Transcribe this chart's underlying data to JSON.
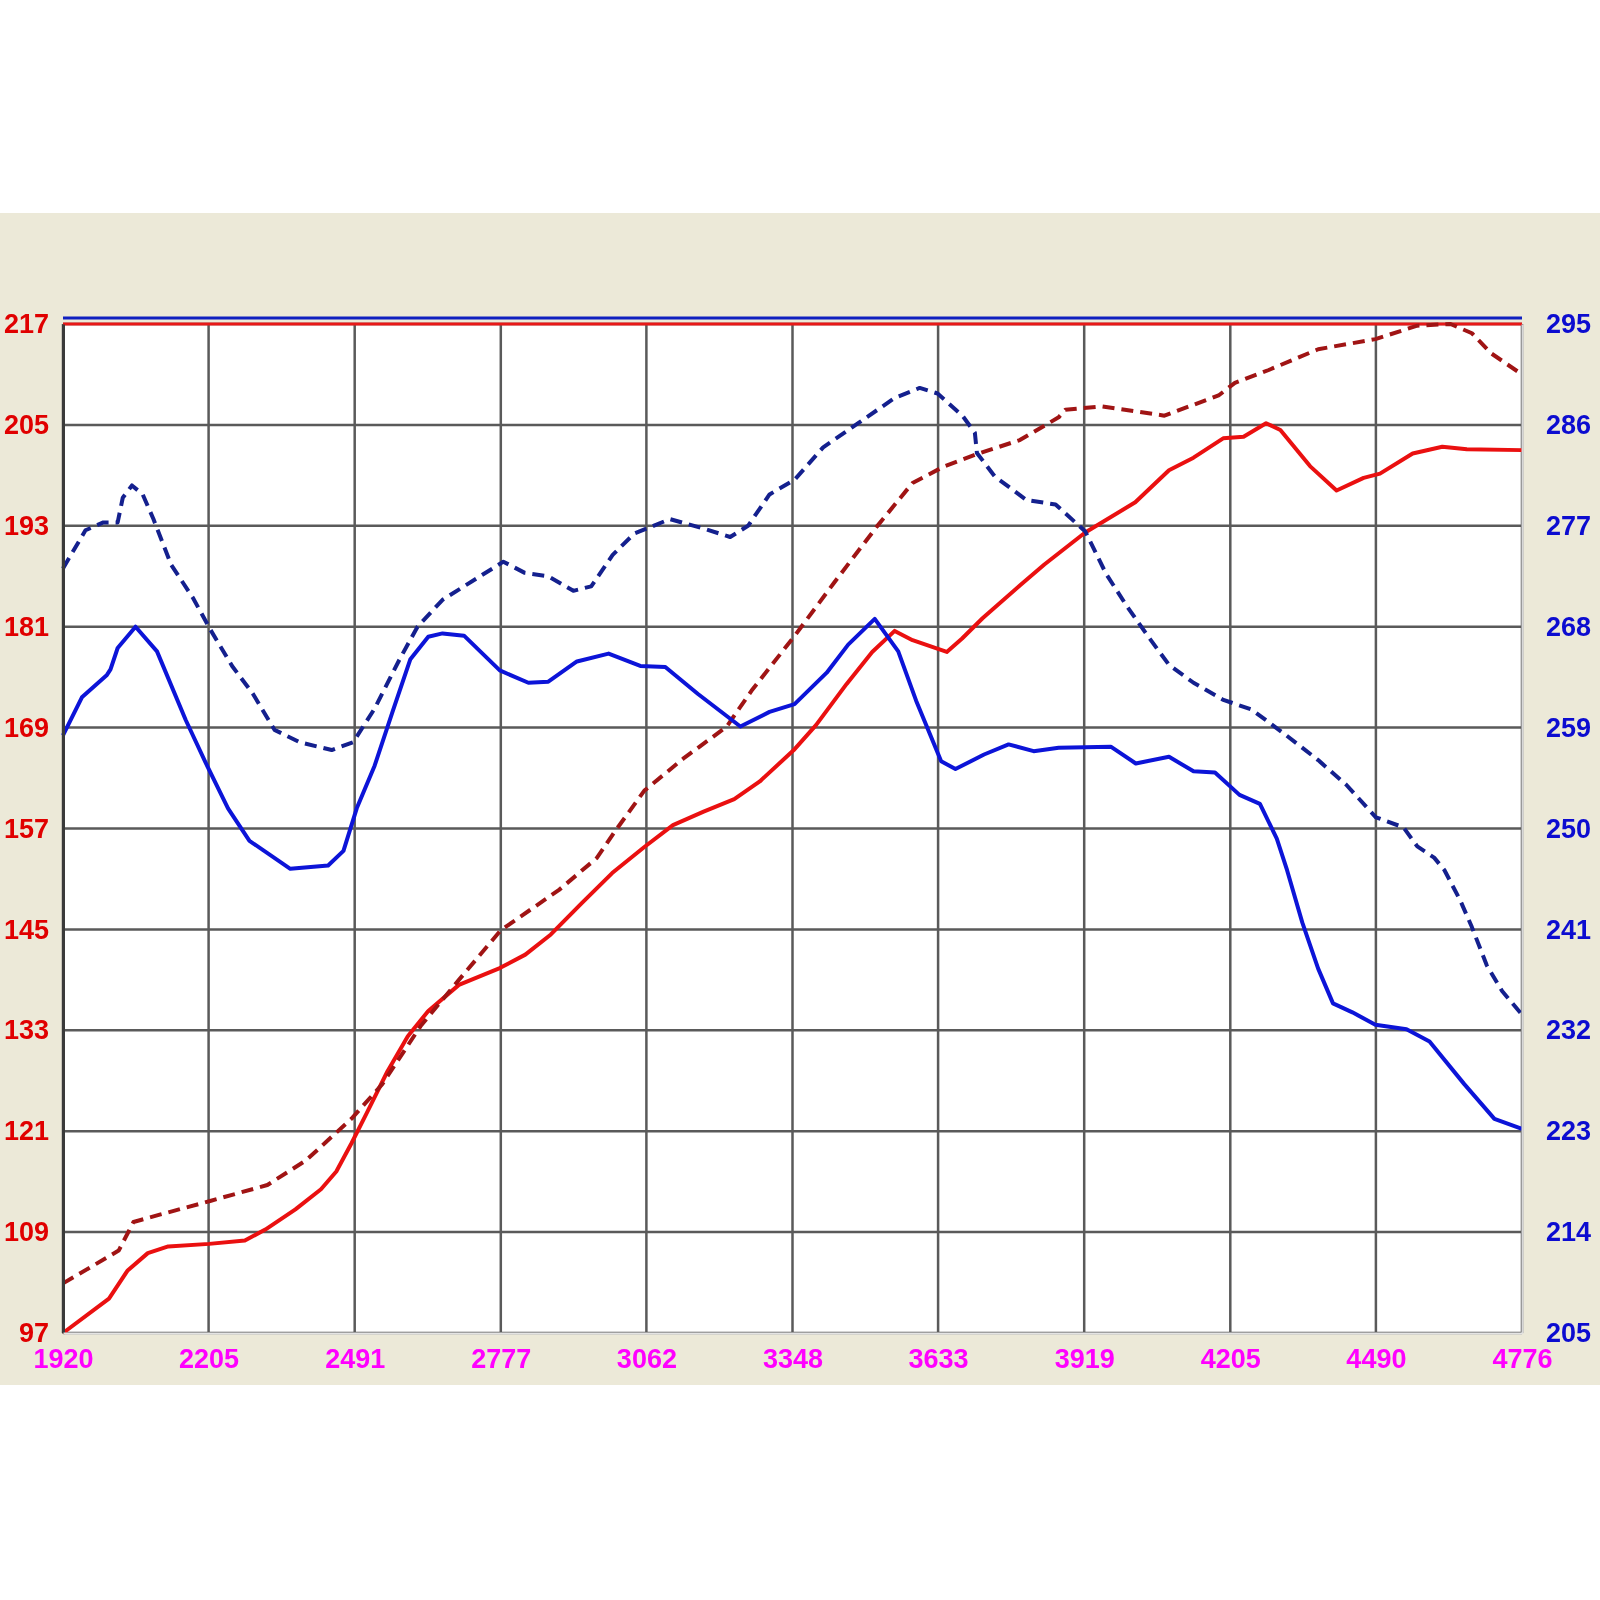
{
  "chart_data": {
    "type": "line",
    "xlim": [
      1920,
      4776
    ],
    "xticks": [
      1920,
      2205,
      2491,
      2777,
      3062,
      3348,
      3633,
      3919,
      4205,
      4490,
      4776
    ],
    "ylim": [
      97,
      217
    ],
    "yticks": [
      97,
      109,
      121,
      133,
      145,
      157,
      169,
      181,
      193,
      205,
      217
    ],
    "y2lim": [
      205,
      295
    ],
    "y2ticks": [
      205,
      214,
      223,
      232,
      241,
      250,
      259,
      268,
      277,
      286,
      295
    ],
    "grid": true,
    "series": [
      {
        "color": "#ea1010",
        "line_style": "solid",
        "x": [
          1920,
          2010,
          2046,
          2086,
          2126,
          2206,
          2276,
          2316,
          2375,
          2425,
          2455,
          2485,
          2515,
          2555,
          2595,
          2635,
          2695,
          2775,
          2825,
          2875,
          2935,
          2995,
          3058,
          3114,
          3174,
          3234,
          3284,
          3350,
          3394,
          3454,
          3504,
          3548,
          3583,
          3650,
          3680,
          3720,
          3793,
          3841,
          3921,
          4019,
          4085,
          4133,
          4191,
          4231,
          4275,
          4303,
          4361,
          4413,
          4466,
          4498,
          4562,
          4620,
          4668,
          4776
        ],
        "values": [
          97.0,
          101.1,
          104.4,
          106.5,
          107.3,
          107.6,
          108.0,
          109.3,
          111.7,
          114.1,
          116.2,
          119.6,
          123.2,
          128.1,
          132.3,
          135.3,
          138.4,
          140.4,
          142.0,
          144.4,
          148.1,
          151.7,
          154.8,
          157.4,
          159.0,
          160.5,
          162.6,
          166.3,
          169.3,
          174.2,
          178.0,
          180.5,
          179.4,
          178.0,
          179.6,
          182.0,
          185.9,
          188.4,
          192.2,
          195.8,
          199.6,
          201.1,
          203.4,
          203.6,
          205.2,
          204.4,
          200.1,
          197.2,
          198.7,
          199.2,
          201.6,
          202.4,
          202.1,
          202.0
        ]
      },
      {
        "color": "#a01414",
        "line_style": "dashed",
        "x": [
          1920,
          2029,
          2058,
          2111,
          2208,
          2320,
          2395,
          2485,
          2545,
          2620,
          2695,
          2777,
          2891,
          2965,
          3001,
          3058,
          3134,
          3219,
          3268,
          3352,
          3429,
          3513,
          3583,
          3646,
          3708,
          3793,
          3869,
          3882,
          3955,
          4076,
          4182,
          4214,
          4279,
          4377,
          4489,
          4571,
          4636,
          4678,
          4716,
          4776
        ],
        "values": [
          102.9,
          106.8,
          110.2,
          111.1,
          112.7,
          114.6,
          117.5,
          122.5,
          126.6,
          133.5,
          139.0,
          144.9,
          149.7,
          153.5,
          156.7,
          161.5,
          165.3,
          169.1,
          173.4,
          179.9,
          186.2,
          192.9,
          198.1,
          200.1,
          201.5,
          203.2,
          205.9,
          206.8,
          207.2,
          206.1,
          208.5,
          210.0,
          211.5,
          214.0,
          215.2,
          216.8,
          217.0,
          215.9,
          213.5,
          211.0
        ]
      },
      {
        "color": "#0c14d8",
        "line_style": "solid",
        "axis": "y2",
        "x": [
          1920,
          1957,
          2006,
          2013,
          2027,
          2062,
          2104,
          2160,
          2202,
          2243,
          2285,
          2365,
          2439,
          2469,
          2495,
          2530,
          2565,
          2600,
          2635,
          2663,
          2705,
          2775,
          2831,
          2870,
          2926,
          2988,
          3050,
          3099,
          3163,
          3246,
          3303,
          3352,
          3415,
          3457,
          3509,
          3555,
          3590,
          3639,
          3667,
          3723,
          3771,
          3820,
          3869,
          3971,
          4020,
          4085,
          4133,
          4175,
          4223,
          4263,
          4296,
          4316,
          4346,
          4377,
          4406,
          4444,
          4489,
          4550,
          4595,
          4663,
          4722,
          4776
        ],
        "values": [
          258.3,
          261.7,
          263.7,
          264.2,
          266.1,
          268.0,
          265.8,
          259.7,
          255.6,
          251.8,
          248.9,
          246.4,
          246.7,
          248.0,
          251.8,
          255.6,
          260.4,
          265.1,
          267.1,
          267.4,
          267.2,
          264.1,
          263.0,
          263.1,
          264.9,
          265.6,
          264.5,
          264.4,
          262.0,
          259.1,
          260.4,
          261.1,
          263.9,
          266.4,
          268.7,
          265.8,
          261.4,
          256.0,
          255.3,
          256.6,
          257.5,
          256.9,
          257.2,
          257.3,
          255.8,
          256.4,
          255.1,
          255.0,
          253.0,
          252.2,
          249.1,
          246.3,
          241.6,
          237.5,
          234.4,
          233.6,
          232.5,
          232.1,
          231.0,
          227.2,
          224.1,
          223.2
        ]
      },
      {
        "color": "#14208e",
        "line_style": "dashed",
        "axis": "y2",
        "x": [
          1920,
          1964,
          1999,
          2027,
          2037,
          2055,
          2076,
          2097,
          2132,
          2174,
          2209,
          2251,
          2292,
          2334,
          2383,
          2446,
          2488,
          2530,
          2579,
          2614,
          2663,
          2705,
          2782,
          2824,
          2870,
          2919,
          2954,
          2996,
          3038,
          3108,
          3178,
          3226,
          3261,
          3303,
          3352,
          3408,
          3478,
          3548,
          3597,
          3632,
          3681,
          3705,
          3709,
          3744,
          3806,
          3863,
          3921,
          3962,
          4003,
          4043,
          4085,
          4133,
          4190,
          4247,
          4312,
          4377,
          4432,
          4490,
          4544,
          4571,
          4604,
          4624,
          4655,
          4677,
          4707,
          4737,
          4776
        ],
        "values": [
          273.2,
          276.6,
          277.3,
          277.3,
          279.5,
          280.6,
          279.8,
          277.6,
          273.5,
          270.6,
          267.7,
          264.5,
          262.0,
          258.8,
          257.7,
          257.0,
          257.7,
          260.7,
          265.1,
          268.0,
          270.4,
          271.6,
          273.8,
          272.8,
          272.5,
          271.2,
          271.6,
          274.4,
          276.3,
          277.6,
          276.7,
          276.0,
          277.0,
          279.8,
          281.1,
          284.0,
          286.2,
          288.4,
          289.3,
          288.8,
          286.8,
          285.3,
          283.5,
          281.4,
          279.3,
          278.9,
          276.5,
          272.7,
          269.8,
          267.2,
          264.6,
          263.0,
          261.5,
          260.6,
          258.4,
          256.1,
          253.9,
          251.0,
          250.1,
          248.4,
          247.4,
          246.3,
          243.6,
          241.3,
          237.8,
          235.5,
          233.4
        ]
      }
    ]
  }
}
